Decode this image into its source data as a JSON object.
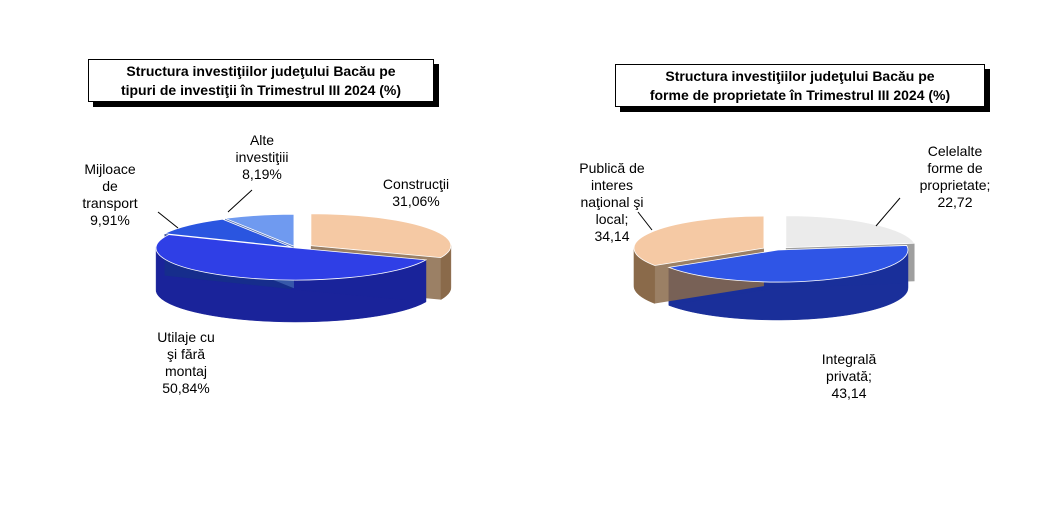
{
  "chart_data": [
    {
      "type": "pie",
      "title_lines": [
        "Structura investiţiilor judeţului Bacău pe",
        "tipuri de investiţii în Trimestrul III 2024 (%)"
      ],
      "slices": [
        {
          "label_lines": [
            "Construcţii",
            "31,06%"
          ],
          "value": 31.06,
          "color": "#f5c9a4",
          "side": "#8a6a4a"
        },
        {
          "label_lines": [
            "Utilaje cu",
            "şi fără",
            "montaj",
            "50,84%"
          ],
          "value": 50.84,
          "color": "#2f3fe6",
          "side": "#1a239a"
        },
        {
          "label_lines": [
            "Mijloace",
            "de",
            "transport",
            "9,91%"
          ],
          "value": 9.91,
          "color": "#2a55e0",
          "side": "#162f8a"
        },
        {
          "label_lines": [
            "Alte",
            "investiţiii",
            "8,19%"
          ],
          "value": 8.19,
          "color": "#6f9af0",
          "side": "#3d5fae"
        }
      ]
    },
    {
      "type": "pie",
      "title_lines": [
        "Structura investiţiilor judeţului Bacău pe",
        "forme de proprietate în Trimestrul III 2024 (%)"
      ],
      "slices": [
        {
          "label_lines": [
            "Celelalte",
            "forme de",
            "proprietate;",
            "22,72"
          ],
          "value": 22.72,
          "color": "#ebebeb",
          "side": "#8e8e8e"
        },
        {
          "label_lines": [
            "Integrală",
            "privată;",
            "43,14"
          ],
          "value": 43.14,
          "color": "#2f55e6",
          "side": "#1a2f9a"
        },
        {
          "label_lines": [
            "Publică de",
            "interes",
            "naţional şi",
            "local;",
            "34,14"
          ],
          "value": 34.14,
          "color": "#f5c9a4",
          "side": "#8a6a4a"
        }
      ]
    }
  ]
}
